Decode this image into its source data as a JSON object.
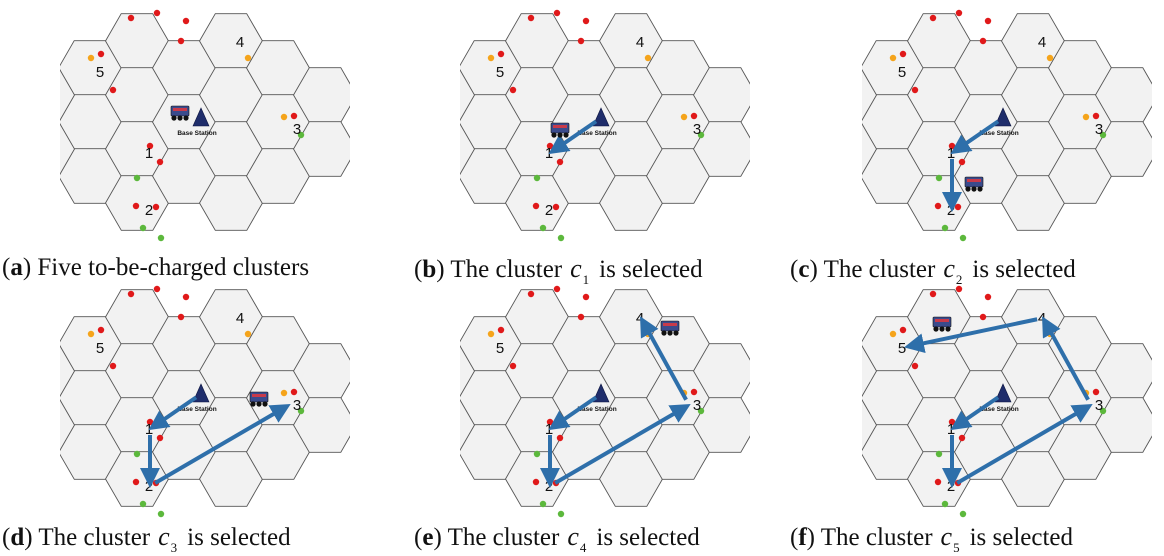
{
  "base_station_label": "Base Station",
  "cluster_labels": [
    "1",
    "2",
    "3",
    "4",
    "5"
  ],
  "colors": {
    "hex_fill": "#f2f2f2",
    "hex_stroke": "#555555",
    "node_red": "#e0191a",
    "node_orange": "#f5a41b",
    "node_green": "#5cb83c",
    "path": "#2e6faa",
    "vehicle": "#3a4b8c",
    "base_station": "#1f2d6b"
  },
  "panels": [
    {
      "id": "a",
      "letter": "a",
      "text": "Five to-be-charged clusters",
      "cvar": "",
      "csub": "",
      "route": [],
      "vehicle": "bs"
    },
    {
      "id": "b",
      "letter": "b",
      "text": "The cluster",
      "cvar": "c",
      "csub": "1",
      "post": "is selected",
      "route": [
        "bs",
        "1"
      ],
      "vehicle": "mid_bs_1"
    },
    {
      "id": "c",
      "letter": "c",
      "text": "The cluster",
      "cvar": "c",
      "csub": "2",
      "post": "is selected",
      "route": [
        "bs",
        "1",
        "2"
      ],
      "vehicle": "mid_1_2"
    },
    {
      "id": "d",
      "letter": "d",
      "text": "The cluster",
      "cvar": "c",
      "csub": "3",
      "post": "is selected",
      "route": [
        "bs",
        "1",
        "2",
        "3"
      ],
      "vehicle": "near_3"
    },
    {
      "id": "e",
      "letter": "e",
      "text": "The cluster",
      "cvar": "c",
      "csub": "4",
      "post": "is selected",
      "route": [
        "bs",
        "1",
        "2",
        "3",
        "4"
      ],
      "vehicle": "near_4"
    },
    {
      "id": "f",
      "letter": "f",
      "text": "The cluster",
      "cvar": "c",
      "csub": "5",
      "post": "is selected",
      "route": [
        "bs",
        "1",
        "2",
        "3",
        "4",
        "5"
      ],
      "vehicle": "near_5"
    }
  ]
}
